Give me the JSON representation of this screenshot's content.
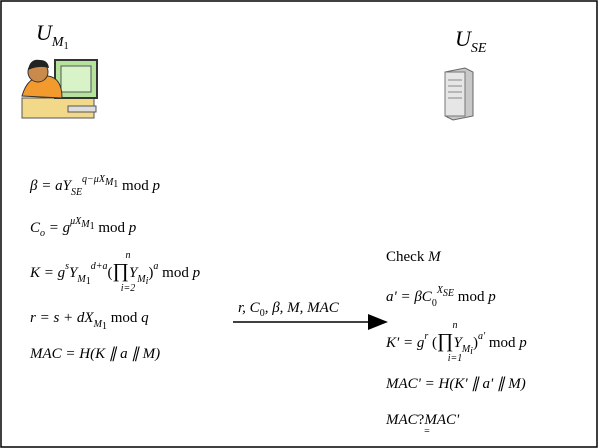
{
  "left_user": [
    "U",
    "M",
    "1"
  ],
  "right_user": [
    "U",
    "SE"
  ],
  "left_formulas": [
    [
      "β = aY",
      "SE",
      "q−μX",
      "M",
      "1",
      " mod ",
      "p"
    ],
    [
      "C",
      "o",
      " = g",
      "μX",
      "M",
      "1",
      " mod ",
      "p"
    ],
    [
      "K = g",
      "s",
      "Y",
      "M",
      "1",
      "d+a",
      "(",
      "∏",
      "n",
      "i=2",
      "Y",
      "M",
      "i",
      ")",
      "a",
      " mod ",
      "p"
    ],
    [
      "r = s + dX",
      "M",
      "1",
      " mod ",
      "q"
    ],
    [
      "MAC = H(K ∥ a ∥ M)"
    ]
  ],
  "message": [
    "r, C",
    "0",
    ", β, M, MAC"
  ],
  "check": [
    "Check ",
    "M"
  ],
  "right_formulas": [
    [
      "a' = βC",
      "0",
      "X",
      "SE",
      " mod ",
      "p"
    ],
    [
      "K' = g",
      "r",
      " (",
      "∏",
      "n",
      "i=1",
      "Y",
      "M",
      "i",
      ")",
      "a'",
      " mod ",
      "p"
    ],
    [
      "MAC' = H(K' ∥ a' ∥ M)"
    ],
    [
      "MAC",
      "?",
      "=",
      "MAC'"
    ]
  ]
}
